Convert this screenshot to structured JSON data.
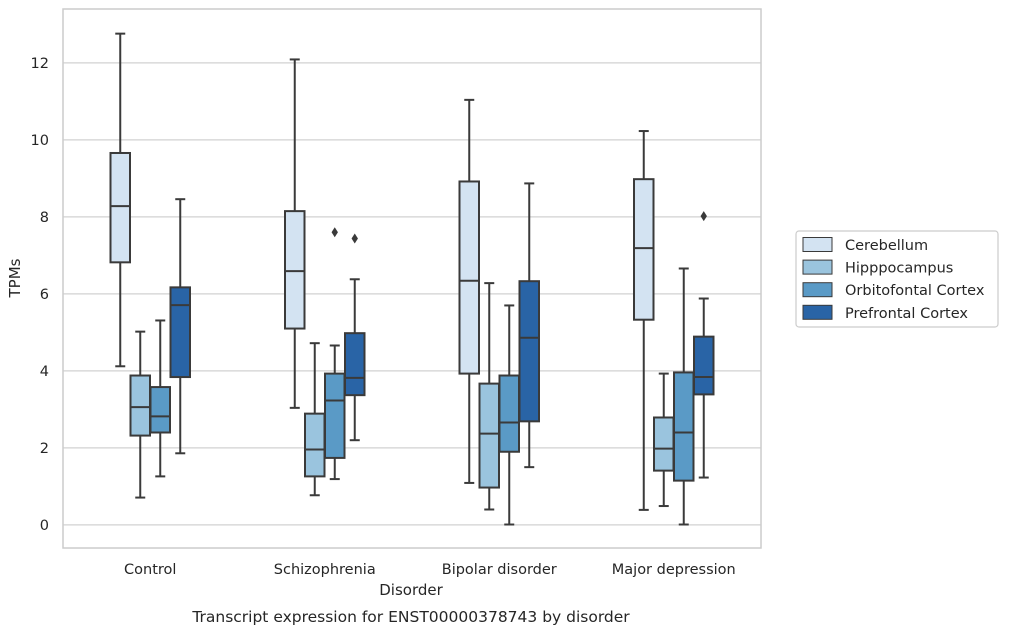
{
  "chart_data": {
    "type": "box",
    "xlabel": "Disorder",
    "ylabel": "TPMs",
    "caption": "Transcript expression for ENST00000378743 by disorder",
    "categories": [
      "Control",
      "Schizophrenia",
      "Bipolar disorder",
      "Major depression"
    ],
    "ylim": [
      -0.6,
      13.4
    ],
    "yticks": [
      0,
      2,
      4,
      6,
      8,
      10,
      12
    ],
    "grid": "horizontal",
    "legend_position": "right",
    "series": [
      {
        "name": "Cerebellum",
        "color": "#d3e3f2",
        "boxes": [
          {
            "whisker_low": 4.12,
            "q1": 6.82,
            "median": 8.28,
            "q3": 9.66,
            "whisker_high": 12.76,
            "outliers": []
          },
          {
            "whisker_low": 3.04,
            "q1": 5.1,
            "median": 6.59,
            "q3": 8.15,
            "whisker_high": 12.09,
            "outliers": []
          },
          {
            "whisker_low": 1.09,
            "q1": 3.93,
            "median": 6.34,
            "q3": 8.92,
            "whisker_high": 11.04,
            "outliers": []
          },
          {
            "whisker_low": 0.39,
            "q1": 5.33,
            "median": 7.19,
            "q3": 8.98,
            "whisker_high": 10.23,
            "outliers": []
          }
        ]
      },
      {
        "name": "Hipppocampus",
        "color": "#9ac4de",
        "boxes": [
          {
            "whisker_low": 0.71,
            "q1": 2.32,
            "median": 3.06,
            "q3": 3.88,
            "whisker_high": 5.02,
            "outliers": []
          },
          {
            "whisker_low": 0.77,
            "q1": 1.26,
            "median": 1.96,
            "q3": 2.89,
            "whisker_high": 4.72,
            "outliers": []
          },
          {
            "whisker_low": 0.4,
            "q1": 0.97,
            "median": 2.37,
            "q3": 3.67,
            "whisker_high": 6.28,
            "outliers": []
          },
          {
            "whisker_low": 0.49,
            "q1": 1.41,
            "median": 1.98,
            "q3": 2.79,
            "whisker_high": 3.93,
            "outliers": []
          }
        ]
      },
      {
        "name": "Orbitofontal Cortex",
        "color": "#5a9ac6",
        "boxes": [
          {
            "whisker_low": 1.26,
            "q1": 2.4,
            "median": 2.82,
            "q3": 3.58,
            "whisker_high": 5.31,
            "outliers": []
          },
          {
            "whisker_low": 1.19,
            "q1": 1.74,
            "median": 3.23,
            "q3": 3.93,
            "whisker_high": 4.66,
            "outliers": [
              7.6
            ]
          },
          {
            "whisker_low": 0.01,
            "q1": 1.9,
            "median": 2.66,
            "q3": 3.88,
            "whisker_high": 5.7,
            "outliers": []
          },
          {
            "whisker_low": 0.01,
            "q1": 1.15,
            "median": 2.4,
            "q3": 3.96,
            "whisker_high": 6.66,
            "outliers": []
          }
        ]
      },
      {
        "name": "Prefrontal Cortex",
        "color": "#2964a6",
        "boxes": [
          {
            "whisker_low": 1.86,
            "q1": 3.84,
            "median": 5.71,
            "q3": 6.17,
            "whisker_high": 8.46,
            "outliers": []
          },
          {
            "whisker_low": 2.2,
            "q1": 3.37,
            "median": 3.82,
            "q3": 4.98,
            "whisker_high": 6.38,
            "outliers": [
              7.44
            ]
          },
          {
            "whisker_low": 1.5,
            "q1": 2.69,
            "median": 4.86,
            "q3": 6.33,
            "whisker_high": 8.87,
            "outliers": []
          },
          {
            "whisker_low": 1.23,
            "q1": 3.39,
            "median": 3.84,
            "q3": 4.89,
            "whisker_high": 5.88,
            "outliers": [
              8.02
            ]
          }
        ]
      }
    ]
  }
}
